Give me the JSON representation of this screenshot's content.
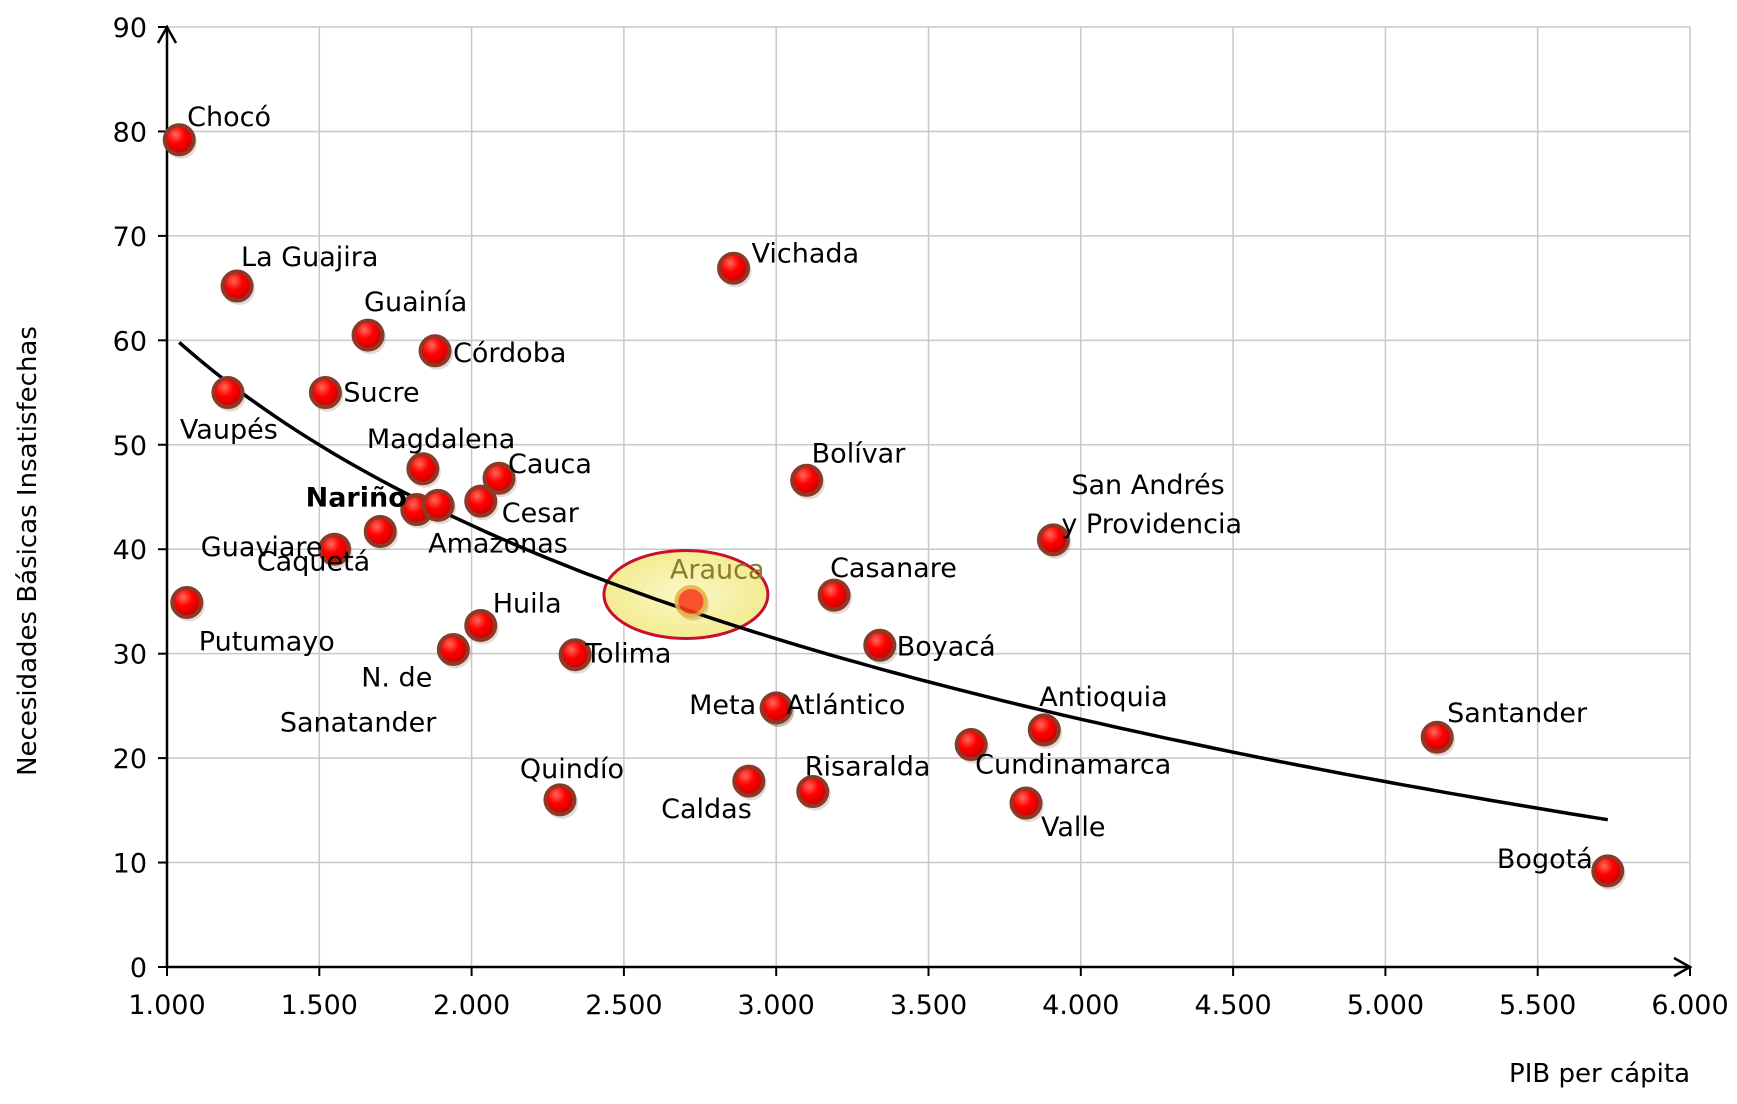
{
  "chart_data": {
    "type": "scatter",
    "title": "",
    "xlabel": "PIB per cápita",
    "ylabel": "Necesidades Básicas Insatisfechas",
    "xlim": [
      1000,
      6000
    ],
    "ylim": [
      0,
      90
    ],
    "grid": true,
    "x_ticks": [
      1000,
      1500,
      2000,
      2500,
      3000,
      3500,
      4000,
      4500,
      5000,
      5500,
      6000
    ],
    "x_tick_labels": [
      "1.000",
      "1.500",
      "2.000",
      "2.500",
      "3.000",
      "3.500",
      "4.000",
      "4.500",
      "5.000",
      "5.500",
      "6.000"
    ],
    "y_ticks": [
      0,
      10,
      20,
      30,
      40,
      50,
      60,
      70,
      80,
      90
    ],
    "y_tick_labels": [
      "0",
      "10",
      "20",
      "30",
      "40",
      "50",
      "60",
      "70",
      "80",
      "90"
    ],
    "points": [
      {
        "label": "Chocó",
        "x": 1040,
        "y": 79.2
      },
      {
        "label": "La Guajira",
        "x": 1230,
        "y": 65.2
      },
      {
        "label": "Vaupés",
        "x": 1200,
        "y": 55.0
      },
      {
        "label": "Putumayo",
        "x": 1065,
        "y": 34.9
      },
      {
        "label": "Guaviare",
        "x": 1550,
        "y": 40.0
      },
      {
        "label": "Guainía",
        "x": 1660,
        "y": 60.5
      },
      {
        "label": "Sucre",
        "x": 1520,
        "y": 55.0
      },
      {
        "label": "Córdoba",
        "x": 1880,
        "y": 59.0
      },
      {
        "label": "Magdalena",
        "x": 1840,
        "y": 47.7
      },
      {
        "label": "Nariño",
        "x": 1820,
        "y": 43.8
      },
      {
        "label": "Amazonas",
        "x": 1890,
        "y": 44.2
      },
      {
        "label": "Caquetá",
        "x": 1700,
        "y": 41.7
      },
      {
        "label": "Cauca",
        "x": 2090,
        "y": 46.8
      },
      {
        "label": "Cesar",
        "x": 2030,
        "y": 44.6
      },
      {
        "label": "Huila",
        "x": 2030,
        "y": 32.7
      },
      {
        "label": "N. de Sanatander",
        "x": 1940,
        "y": 30.4
      },
      {
        "label": "Tolima",
        "x": 2340,
        "y": 29.9
      },
      {
        "label": "Quindío",
        "x": 2290,
        "y": 16.0
      },
      {
        "label": "Arauca",
        "x": 2720,
        "y": 35.0
      },
      {
        "label": "Vichada",
        "x": 2860,
        "y": 66.9
      },
      {
        "label": "Bolívar",
        "x": 3100,
        "y": 46.6
      },
      {
        "label": "Casanare",
        "x": 3190,
        "y": 35.6
      },
      {
        "label": "Boyacá",
        "x": 3340,
        "y": 30.8
      },
      {
        "label": "Meta",
        "x": 3000,
        "y": 24.8
      },
      {
        "label": "Atlántico",
        "x": 3000,
        "y": 24.8
      },
      {
        "label": "Caldas",
        "x": 2910,
        "y": 17.8
      },
      {
        "label": "Risaralda",
        "x": 3120,
        "y": 16.8
      },
      {
        "label": "Cundinamarca",
        "x": 3640,
        "y": 21.3
      },
      {
        "label": "Antioquia",
        "x": 3880,
        "y": 22.7
      },
      {
        "label": "Valle",
        "x": 3820,
        "y": 15.7
      },
      {
        "label": "San Andrés y Providencia",
        "x": 3910,
        "y": 40.9
      },
      {
        "label": "Santander",
        "x": 5170,
        "y": 22.0
      },
      {
        "label": "Bogotá",
        "x": 5730,
        "y": 9.2
      }
    ],
    "trendline": {
      "type": "logarithmic",
      "x_range": [
        1040,
        5730
      ],
      "y_at_start": 59.8,
      "y_at_end": 14.1
    },
    "highlight": {
      "label": "Arauca"
    },
    "colors": {
      "marker": "#ff0000",
      "marker_edge": "#8a3a28",
      "trendline": "#000000",
      "highlight_fill": "#f6f2a4",
      "highlight_stroke": "#c8102e",
      "highlight_label": "#8a7d2a",
      "grid": "#c8c8c8"
    }
  }
}
